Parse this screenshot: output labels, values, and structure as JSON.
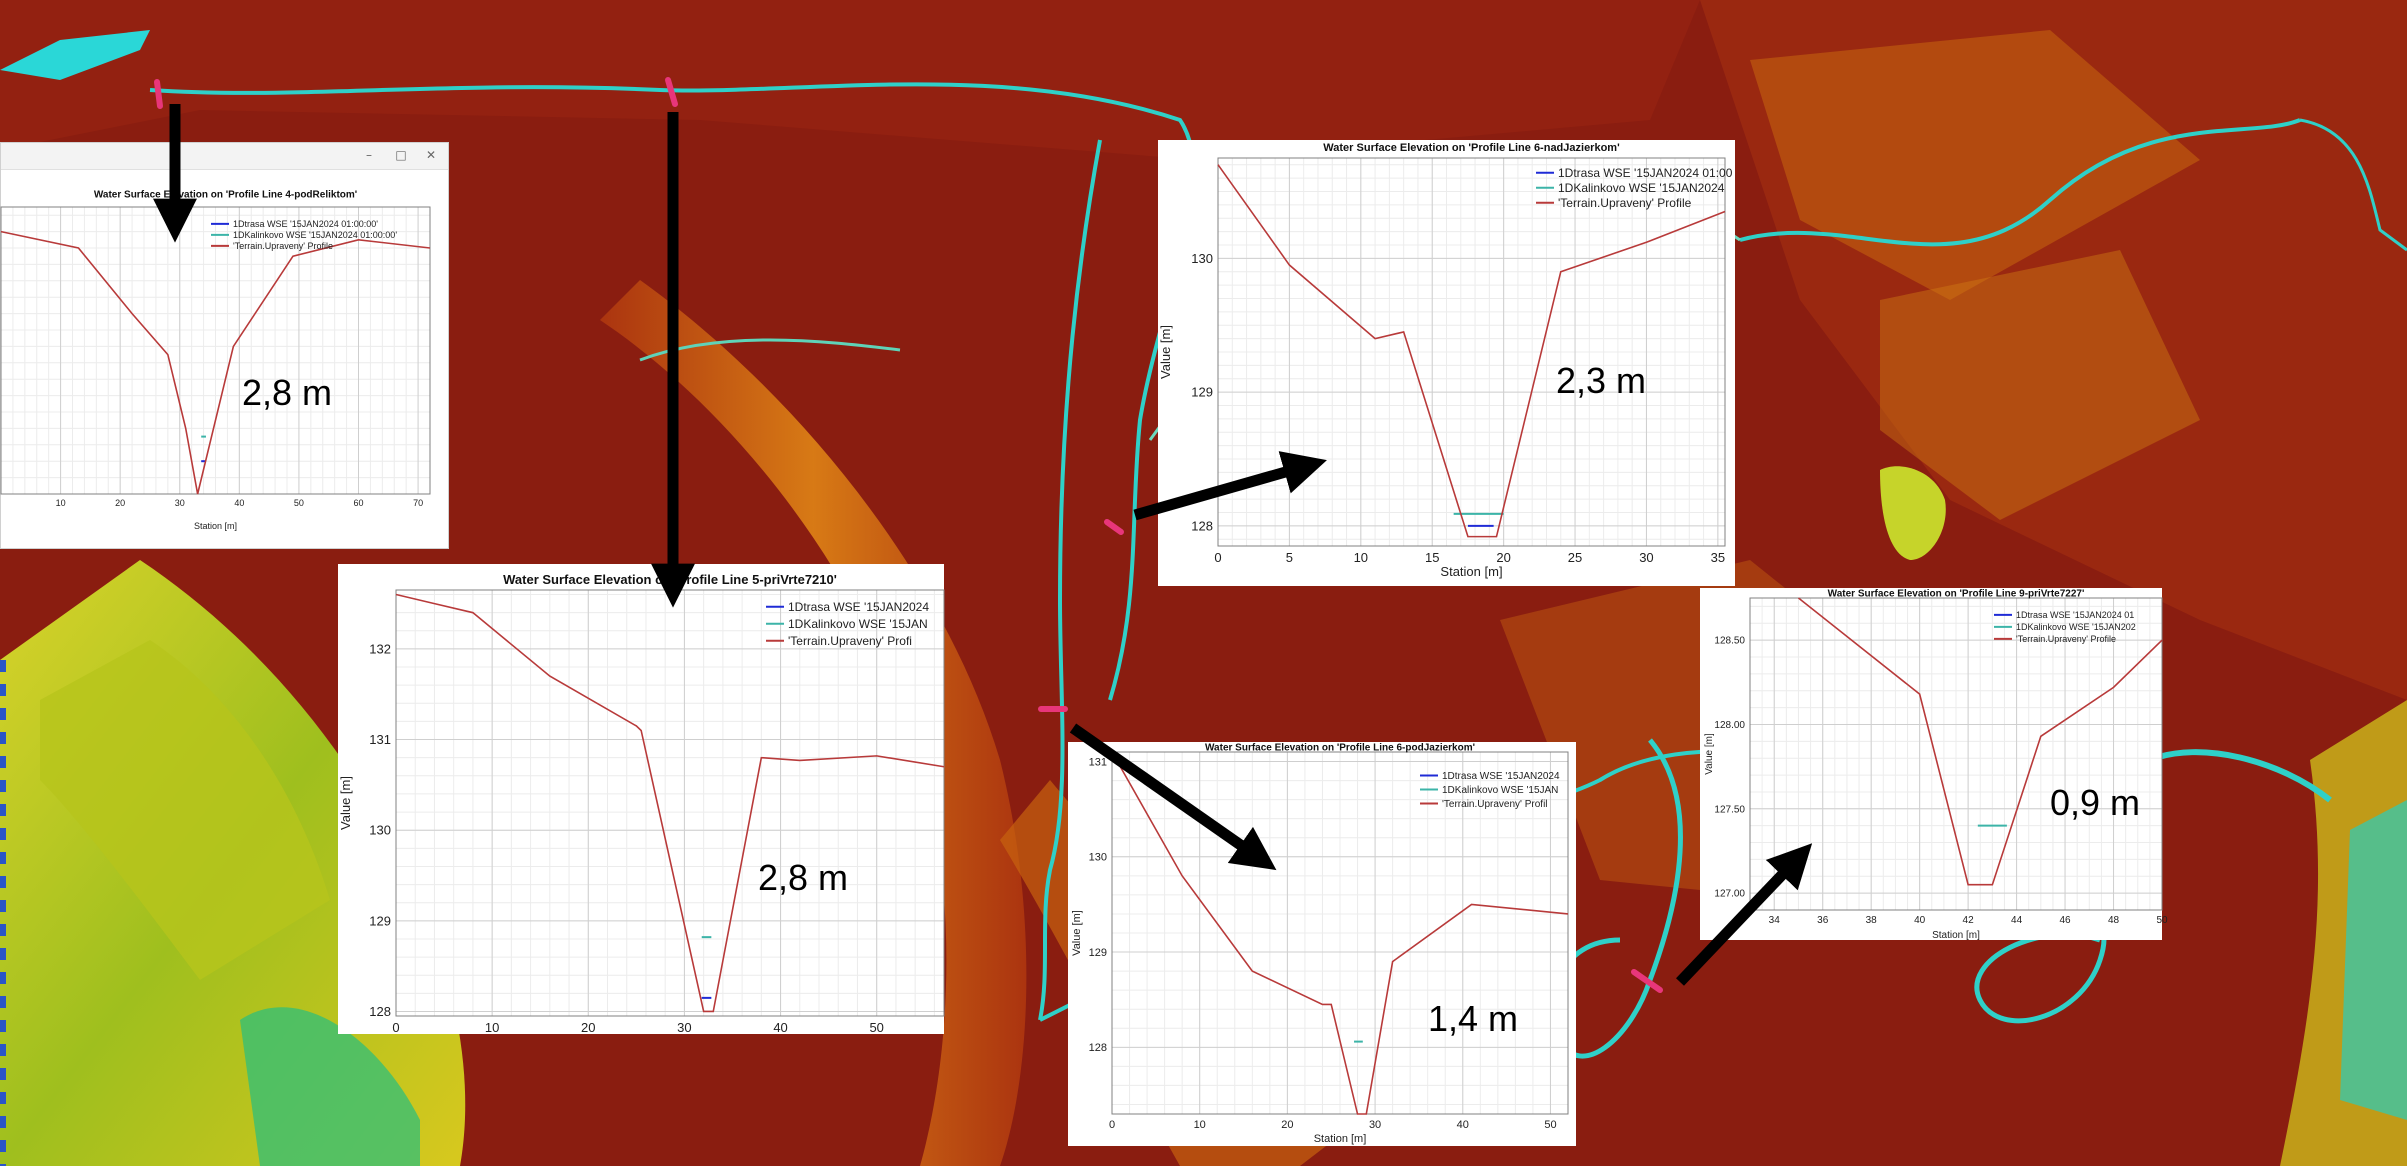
{
  "map": {
    "colors": {
      "low": "#c8cc20",
      "mid": "#e07a14",
      "high": "#7e1d0c",
      "channel": "#2fd0c8",
      "marker": "#e8367a"
    }
  },
  "panels": [
    {
      "id": "p4",
      "window_controls": [
        "–",
        "□",
        "✕"
      ],
      "chart_data": {
        "type": "line",
        "title": "Water Surface Elevation on 'Profile Line 4-podReliktom'",
        "xlabel": "Station [m]",
        "ylabel": "",
        "xlim": [
          0,
          72
        ],
        "ylim": [
          129.4,
          132.9
        ],
        "xticks": [
          10,
          20,
          30,
          40,
          50,
          60,
          70
        ],
        "yticks": [],
        "grid": true,
        "legend_position": "top-right",
        "series": [
          {
            "name": "1Dtrasa WSE '15JAN2024 01:00:00'",
            "color": "#1f2bd6",
            "x": [
              33.6,
              34.4
            ],
            "y": [
              129.8,
              129.8
            ]
          },
          {
            "name": "1DKalinkovo WSE '15JAN2024 01:00:00'",
            "color": "#3cb4a8",
            "x": [
              33.6,
              34.4
            ],
            "y": [
              130.1,
              130.1
            ]
          },
          {
            "name": "'Terrain.Upraveny' Profile",
            "color": "#b83a3a",
            "x": [
              0,
              13,
              22,
              28,
              31,
              33,
              35,
              39,
              49,
              60,
              72
            ],
            "y": [
              132.6,
              132.4,
              131.6,
              131.1,
              130.2,
              129.4,
              130.0,
              131.2,
              132.3,
              132.5,
              132.4
            ]
          }
        ]
      },
      "annotation": "2,8 m"
    },
    {
      "id": "p5",
      "chart_data": {
        "type": "line",
        "title": "Water Surface Elevation on 'Profile Line 5-priVrte7210'",
        "xlabel": "",
        "ylabel": "Value [m]",
        "xlim": [
          0,
          57
        ],
        "ylim": [
          127.95,
          132.65
        ],
        "xticks": [
          0,
          10,
          20,
          30,
          40,
          50
        ],
        "yticks": [
          128,
          129,
          130,
          131,
          132
        ],
        "grid": true,
        "legend_position": "top-right",
        "series": [
          {
            "name": "1Dtrasa WSE '15JAN2024",
            "color": "#1f2bd6",
            "x": [
              31.8,
              32.8
            ],
            "y": [
              128.15,
              128.15
            ]
          },
          {
            "name": "1DKalinkovo WSE '15JAN",
            "color": "#3cb4a8",
            "x": [
              31.8,
              32.8
            ],
            "y": [
              128.82,
              128.82
            ]
          },
          {
            "name": "'Terrain.Upraveny' Profi",
            "color": "#b83a3a",
            "x": [
              0,
              4,
              8,
              16,
              25,
              25.5,
              32,
              33,
              38,
              42,
              50,
              57
            ],
            "y": [
              132.6,
              132.5,
              132.4,
              131.7,
              131.15,
              131.1,
              128.0,
              128.0,
              130.8,
              130.77,
              130.82,
              130.7
            ]
          }
        ]
      },
      "annotation": "2,8 m"
    },
    {
      "id": "p6n",
      "chart_data": {
        "type": "line",
        "title": "Water Surface Elevation on 'Profile Line 6-nadJazierkom'",
        "xlabel": "Station [m]",
        "ylabel": "Value [m]",
        "xlim": [
          0,
          35.5
        ],
        "ylim": [
          127.85,
          130.75
        ],
        "xticks": [
          0,
          5,
          10,
          15,
          20,
          25,
          30,
          35
        ],
        "yticks": [
          128,
          129,
          130
        ],
        "grid": true,
        "legend_position": "top-right",
        "series": [
          {
            "name": "1Dtrasa WSE '15JAN2024 01:00",
            "color": "#1f2bd6",
            "x": [
              17.5,
              19.3
            ],
            "y": [
              128.0,
              128.0
            ]
          },
          {
            "name": "1DKalinkovo WSE '15JAN2024",
            "color": "#3cb4a8",
            "x": [
              16.5,
              20
            ],
            "y": [
              128.09,
              128.09
            ]
          },
          {
            "name": "'Terrain.Upraveny' Profile",
            "color": "#b83a3a",
            "x": [
              0,
              5,
              11,
              13,
              17.5,
              19.5,
              24,
              30,
              35.5
            ],
            "y": [
              130.7,
              129.95,
              129.4,
              129.45,
              127.92,
              127.92,
              129.9,
              130.12,
              130.35
            ]
          }
        ]
      },
      "annotation": "2,3 m"
    },
    {
      "id": "p6p",
      "chart_data": {
        "type": "line",
        "title": "Water Surface Elevation on 'Profile Line 6-podJazierkom'",
        "xlabel": "Station [m]",
        "ylabel": "Value [m]",
        "xlim": [
          0,
          52
        ],
        "ylim": [
          127.3,
          131.1
        ],
        "xticks": [
          0,
          10,
          20,
          30,
          40,
          50
        ],
        "yticks": [
          128,
          129,
          130,
          131
        ],
        "grid": true,
        "legend_position": "top-right",
        "series": [
          {
            "name": "1Dtrasa WSE '15JAN2024",
            "color": "#1f2bd6",
            "x": [],
            "y": []
          },
          {
            "name": "1DKalinkovo WSE '15JAN",
            "color": "#3cb4a8",
            "x": [
              27.6,
              28.6
            ],
            "y": [
              128.06,
              128.06
            ]
          },
          {
            "name": "'Terrain.Upraveny' Profil",
            "color": "#b83a3a",
            "x": [
              0,
              8,
              16,
              24,
              25,
              28,
              29,
              32,
              41,
              52
            ],
            "y": [
              131.1,
              129.8,
              128.8,
              128.45,
              128.45,
              127.3,
              127.3,
              128.9,
              129.5,
              129.4
            ]
          }
        ]
      },
      "annotation": "1,4 m"
    },
    {
      "id": "p9",
      "chart_data": {
        "type": "line",
        "title": "Water Surface Elevation on 'Profile Line 9-priVrte7227'",
        "xlabel": "Station [m]",
        "ylabel": "Value [m]",
        "xlim": [
          33,
          50
        ],
        "ylim": [
          126.9,
          128.75
        ],
        "xticks": [
          34,
          36,
          38,
          40,
          42,
          44,
          46,
          48,
          50
        ],
        "yticks": [
          127.0,
          127.5,
          128.0,
          128.5
        ],
        "grid": true,
        "legend_position": "top-right",
        "series": [
          {
            "name": "1Dtrasa WSE '15JAN2024 01",
            "color": "#1f2bd6",
            "x": [],
            "y": []
          },
          {
            "name": "1DKalinkovo WSE '15JAN202",
            "color": "#3cb4a8",
            "x": [
              42.4,
              43.6
            ],
            "y": [
              127.4,
              127.4
            ]
          },
          {
            "name": "'Terrain.Upraveny' Profile",
            "color": "#b83a3a",
            "x": [
              35,
              40,
              42,
              43,
              45,
              48,
              50
            ],
            "y": [
              128.75,
              128.18,
              127.05,
              127.05,
              127.93,
              128.22,
              128.5
            ]
          }
        ]
      },
      "annotation": "0,9 m"
    }
  ]
}
